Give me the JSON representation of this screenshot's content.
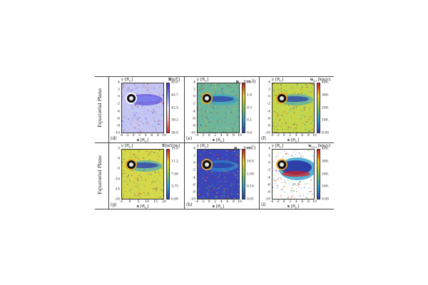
{
  "row_labels": [
    "Equatorial Plane",
    "Equatorial Plane"
  ],
  "x_label": "x [R",
  "x_label_sub": "C",
  "y_label": "y [R",
  "panels": [
    {
      "id": "d",
      "label": "(d)",
      "quantity": "B[nT]",
      "y_ticks": [
        "4",
        "2",
        "0",
        "-2",
        "-4",
        "-6",
        "-8",
        "-10"
      ],
      "x_ticks": [
        "-4",
        "-2",
        "0",
        "2",
        "4",
        "6",
        "8",
        "10"
      ],
      "cb_ticks": [
        "49.0",
        "45.7",
        "42.5",
        "39.2",
        "36.0"
      ],
      "colormap": [
        "#3f2bd6",
        "#7d83f2",
        "#dfe3f8",
        "#f0a7a0",
        "#d8191a"
      ],
      "background": "#c3c6f2"
    },
    {
      "id": "e",
      "label": "(e)",
      "quantity": "n_O+ [cm^-3]",
      "y_ticks": [
        "4",
        "2",
        "0",
        "-2",
        "-4",
        "-6",
        "-8",
        "-10"
      ],
      "x_ticks": [
        "-4",
        "-2",
        "0",
        "2",
        "4",
        "6",
        "8",
        "10"
      ],
      "cb_ticks": [
        "10.0",
        "1.0",
        "0.3",
        "0.1",
        "0.0"
      ],
      "colormap": [
        "#d8191a",
        "#f5d21f",
        "#83c74b",
        "#2b9fcf",
        "#2d3fa8"
      ],
      "background": "#6fb59a"
    },
    {
      "id": "f",
      "label": "(f)",
      "quantity": "u_O+ [km/s]",
      "y_ticks": [
        "4",
        "2",
        "0",
        "-2",
        "-4",
        "-6",
        "-8",
        "-10"
      ],
      "x_ticks": [
        "-4",
        "-2",
        "0",
        "2",
        "4",
        "6",
        "8",
        "10"
      ],
      "cb_ticks": [
        "400.",
        "300.",
        "200.",
        "100.",
        "0.00"
      ],
      "colormap": [
        "#d8191a",
        "#f5d21f",
        "#83c74b",
        "#2b9fcf",
        "#2d3fa8"
      ],
      "background": "#c6d64a"
    },
    {
      "id": "g",
      "label": "(g)",
      "quantity": "E[mV/m]",
      "y_ticks": [
        "5",
        "0",
        "-5",
        "-10",
        "-15",
        "-20"
      ],
      "x_ticks": [
        "-5",
        "0",
        "5",
        "10",
        "15",
        "20"
      ],
      "cb_ticks": [
        "15.0",
        "11.2",
        "7.50",
        "3.75",
        "0.00"
      ],
      "colormap": [
        "#d8191a",
        "#f5d21f",
        "#83c74b",
        "#2b9fcf",
        "#2d3fa8"
      ],
      "background": "#d4d84a"
    },
    {
      "id": "h",
      "label": "(h)",
      "quantity": "n_O2+ [cm^-3]",
      "y_ticks": [
        "4",
        "2",
        "0",
        "-2",
        "-4",
        "-6",
        "-8",
        "-10"
      ],
      "x_ticks": [
        "-4",
        "-2",
        "0",
        "2",
        "4",
        "6",
        "8",
        "10"
      ],
      "cb_ticks": [
        "100.",
        "10.0",
        "1.00",
        "0.10",
        "0.01"
      ],
      "colormap": [
        "#d8191a",
        "#f5d21f",
        "#83c74b",
        "#2b9fcf",
        "#2d3fa8"
      ],
      "background": "#3a45b8"
    },
    {
      "id": "i",
      "label": "(i)",
      "quantity": "u_O2+ [km/s]",
      "y_ticks": [
        "4",
        "2",
        "0",
        "-2",
        "-4",
        "-6",
        "-8",
        "-10"
      ],
      "x_ticks": [
        "-4",
        "-2",
        "0",
        "2",
        "4",
        "6",
        "8",
        "10"
      ],
      "cb_ticks": [
        "400.",
        "300.",
        "200.",
        "100.",
        "0.00"
      ],
      "colormap": [
        "#d8191a",
        "#f5d21f",
        "#83c74b",
        "#2b9fcf",
        "#2d3fa8"
      ],
      "background": "#ffffff"
    }
  ]
}
